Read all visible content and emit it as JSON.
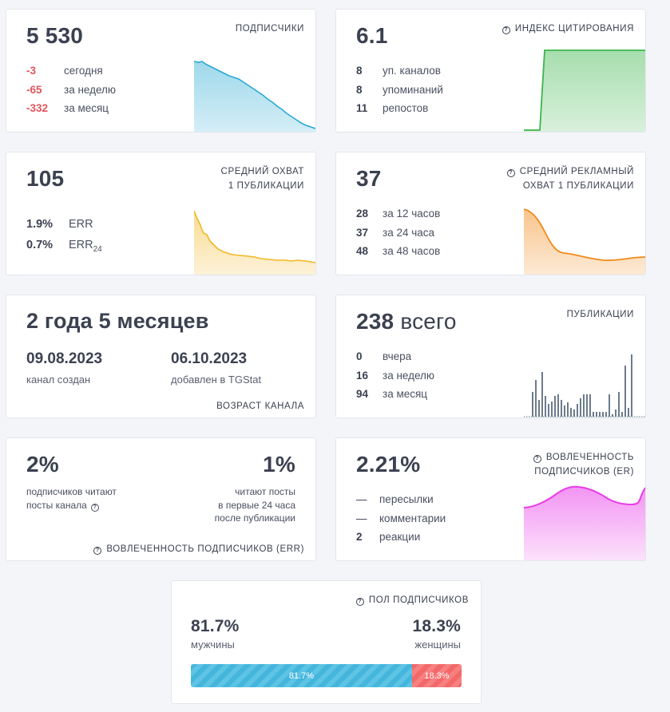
{
  "subscribers": {
    "total": "5 530",
    "title": "ПОДПИСЧИКИ",
    "rows": [
      {
        "value": "-3",
        "label": "сегодня"
      },
      {
        "value": "-65",
        "label": "за неделю"
      },
      {
        "value": "-332",
        "label": "за месяц"
      }
    ],
    "color": "#29a9d2"
  },
  "citation": {
    "value": "6.1",
    "title": "ИНДЕКС ЦИТИРОВАНИЯ",
    "rows": [
      {
        "value": "8",
        "label": "уп. каналов"
      },
      {
        "value": "8",
        "label": "упоминаний"
      },
      {
        "value": "11",
        "label": "репостов"
      }
    ],
    "color": "#3bb54a"
  },
  "reach": {
    "value": "105",
    "title_line1": "СРЕДНИЙ ОХВАТ",
    "title_line2": "1 ПУБЛИКАЦИИ",
    "rows": [
      {
        "value": "1.9%",
        "label": "ERR",
        "sub": ""
      },
      {
        "value": "0.7%",
        "label": "ERR",
        "sub": "24"
      }
    ],
    "color": "#f2b825"
  },
  "ad_reach": {
    "value": "37",
    "title_line1": "СРЕДНИЙ РЕКЛАМНЫЙ",
    "title_line2": "ОХВАТ 1 ПУБЛИКАЦИИ",
    "rows": [
      {
        "value": "28",
        "label": "за 12 часов"
      },
      {
        "value": "37",
        "label": "за 24 часа"
      },
      {
        "value": "48",
        "label": "за 48 часов"
      }
    ],
    "color": "#f28a1a"
  },
  "age": {
    "value": "2 года 5 месяцев",
    "created_date": "09.08.2023",
    "created_label": "канал создан",
    "added_date": "06.10.2023",
    "added_label": "добавлен в TGStat",
    "title": "ВОЗРАСТ КАНАЛА"
  },
  "publications": {
    "value": "238",
    "suffix": "всего",
    "title": "ПУБЛИКАЦИИ",
    "rows": [
      {
        "value": "0",
        "label": "вчера"
      },
      {
        "value": "16",
        "label": "за неделю"
      },
      {
        "value": "94",
        "label": "за месяц"
      }
    ],
    "color": "#6d7b8d"
  },
  "err": {
    "left_value": "2%",
    "left_line1": "подписчиков читают",
    "left_line2": "посты канала",
    "right_value": "1%",
    "right_line1": "читают посты",
    "right_line2": "в первые 24 часа",
    "right_line3": "после публикации",
    "title": "ВОВЛЕЧЕННОСТЬ ПОДПИСЧИКОВ (ERR)"
  },
  "er": {
    "value": "2.21%",
    "title_line1": "ВОВЛЕЧЕННОСТЬ",
    "title_line2": "ПОДПИСЧИКОВ (ER)",
    "rows": [
      {
        "value": "—",
        "label": "пересылки"
      },
      {
        "value": "—",
        "label": "комментарии"
      },
      {
        "value": "2",
        "label": "реакции"
      }
    ],
    "color": "#e93ce9"
  },
  "gender": {
    "title": "ПОЛ ПОДПИСЧИКОВ",
    "male_value": "81.7%",
    "male_label": "мужчины",
    "female_value": "18.3%",
    "female_label": "женщины",
    "male_fraction": 0.817,
    "male_bar_label": "81.7%",
    "female_bar_label": "18.3%"
  }
}
